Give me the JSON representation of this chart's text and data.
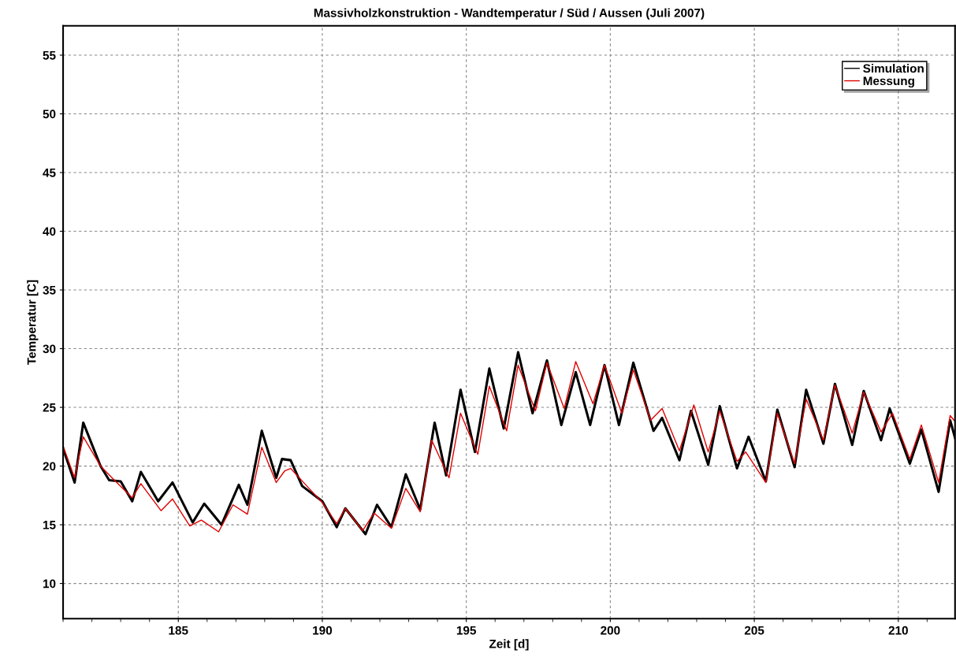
{
  "chart_data": {
    "type": "line",
    "title": "Massivholzkonstruktion - Wandtemperatur / Süd / Aussen (Juli 2007)",
    "xlabel": "Zeit [d]",
    "ylabel": "Temperatur [C]",
    "xlim": [
      181,
      211.97
    ],
    "xticks": [
      185,
      190,
      195,
      200,
      205,
      210
    ],
    "ylim": [
      7,
      57.5
    ],
    "yticks": [
      10,
      15,
      20,
      25,
      30,
      35,
      40,
      45,
      50,
      55
    ],
    "grid": true,
    "legend": "top right",
    "line_style": "solid",
    "marker": "none",
    "series": [
      {
        "name": "Simulation",
        "color": "#000000",
        "x": [
          181.0,
          181.4,
          181.7,
          182.3,
          182.6,
          183.0,
          183.4,
          183.7,
          184.3,
          184.8,
          185.5,
          185.9,
          186.5,
          187.1,
          187.4,
          187.9,
          188.4,
          188.6,
          188.9,
          189.3,
          190.0,
          190.5,
          190.8,
          191.5,
          191.9,
          192.4,
          192.9,
          193.4,
          193.9,
          194.3,
          194.8,
          195.3,
          195.8,
          196.3,
          196.8,
          197.3,
          197.8,
          198.3,
          198.8,
          199.3,
          199.8,
          200.3,
          200.8,
          201.5,
          201.8,
          202.4,
          202.8,
          203.4,
          203.8,
          204.4,
          204.8,
          205.4,
          205.8,
          206.4,
          206.8,
          207.4,
          207.8,
          208.4,
          208.8,
          209.4,
          209.7,
          210.4,
          210.8,
          211.4,
          211.8,
          211.97
        ],
        "values": [
          21.5,
          18.6,
          23.7,
          20.0,
          18.8,
          18.7,
          17.0,
          19.5,
          17.0,
          18.6,
          15.2,
          16.8,
          15.0,
          18.4,
          16.7,
          23.0,
          19.0,
          20.6,
          20.5,
          18.3,
          17.0,
          14.8,
          16.4,
          14.2,
          16.7,
          14.8,
          19.3,
          16.3,
          23.7,
          19.2,
          26.5,
          21.2,
          28.3,
          23.2,
          29.7,
          24.5,
          29.0,
          23.5,
          28.0,
          23.5,
          28.6,
          23.5,
          28.8,
          23.0,
          24.1,
          20.5,
          24.7,
          20.1,
          25.1,
          19.8,
          22.5,
          18.7,
          24.8,
          19.9,
          26.5,
          21.9,
          27.0,
          21.8,
          26.4,
          22.2,
          24.9,
          20.2,
          23.1,
          17.8,
          23.9,
          22.4
        ]
      },
      {
        "name": "Messung",
        "color": "#e00000",
        "x": [
          181.0,
          181.4,
          181.7,
          182.3,
          182.7,
          183.4,
          183.7,
          184.4,
          184.8,
          185.4,
          185.8,
          186.4,
          186.9,
          187.4,
          187.9,
          188.4,
          188.7,
          188.9,
          189.5,
          190.0,
          190.5,
          190.8,
          191.4,
          191.8,
          192.4,
          192.9,
          193.4,
          193.8,
          194.4,
          194.8,
          195.4,
          195.8,
          196.4,
          196.8,
          197.4,
          197.8,
          198.4,
          198.8,
          199.4,
          199.8,
          200.4,
          200.8,
          201.4,
          201.8,
          202.4,
          202.9,
          203.4,
          203.8,
          204.4,
          204.7,
          205.4,
          205.8,
          206.4,
          206.8,
          207.4,
          207.8,
          208.4,
          208.8,
          209.4,
          209.8,
          210.4,
          210.8,
          211.4,
          211.8,
          211.97
        ],
        "values": [
          21.7,
          19.0,
          22.5,
          20.0,
          19.0,
          17.3,
          18.5,
          16.2,
          17.2,
          14.9,
          15.4,
          14.4,
          16.7,
          15.9,
          21.6,
          18.6,
          19.6,
          19.8,
          18.2,
          16.9,
          15.1,
          16.4,
          14.5,
          16.0,
          14.7,
          18.1,
          16.1,
          22.2,
          19.0,
          24.5,
          21.0,
          26.8,
          23.0,
          28.6,
          24.7,
          28.8,
          24.9,
          28.9,
          25.3,
          28.6,
          24.5,
          28.2,
          23.9,
          24.9,
          21.3,
          25.2,
          21.2,
          24.7,
          20.4,
          21.2,
          18.6,
          24.5,
          20.2,
          25.7,
          22.2,
          26.9,
          22.8,
          26.3,
          22.9,
          24.5,
          20.6,
          23.5,
          18.6,
          24.3,
          23.8
        ]
      }
    ]
  }
}
